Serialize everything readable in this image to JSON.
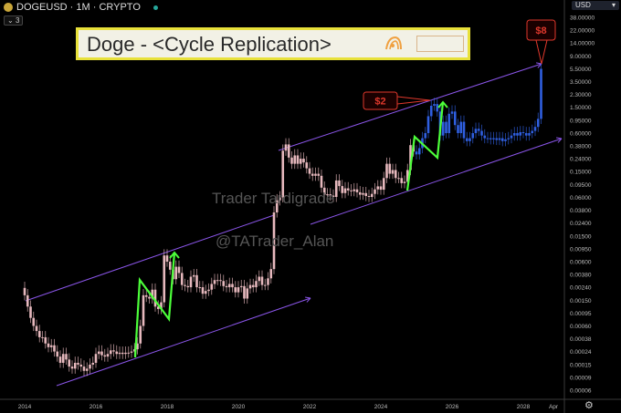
{
  "header": {
    "symbol": "DOGEUSD · 1M · CRYPTO",
    "indicator_count": "3",
    "currency": "USD",
    "currency_caret": "▾",
    "settings_icon": "gear-icon"
  },
  "title_box": {
    "text": "Doge - <Cycle Replication>",
    "logo_text": "Trader Tardigrade @TATrader_Alan"
  },
  "watermarks": [
    "Trader Tardigrade",
    "@TATrader_Alan"
  ],
  "colors": {
    "history_candles": "#e6b8bd",
    "projection_candles": "#2f5fe0",
    "channel": "#8a55e8",
    "n_pattern": "#4cff3a",
    "annotation": "#e0382c",
    "title_border": "#e8e13a"
  },
  "chart_data": {
    "type": "candlestick",
    "scale": "log",
    "grid": false,
    "y_ticks": [
      "38.00000",
      "22.00000",
      "14.00000",
      "9.00000",
      "5.50000",
      "3.50000",
      "2.30000",
      "1.50000",
      "0.95000",
      "0.60000",
      "0.38000",
      "0.24000",
      "0.15000",
      "0.09500",
      "0.06000",
      "0.03800",
      "0.02400",
      "0.01500",
      "0.00950",
      "0.00600",
      "0.00380",
      "0.00240",
      "0.00150",
      "0.00095",
      "0.00060",
      "0.00038",
      "0.00024",
      "0.00015",
      "0.00009",
      "0.00006"
    ],
    "x_ticks": [
      "2014",
      "2016",
      "2018",
      "2020",
      "2022",
      "2024",
      "2026",
      "2028",
      "Apr"
    ],
    "ylim": [
      6e-05,
      38
    ],
    "xlim": [
      "2013-11",
      "2029-08"
    ],
    "history_monthly_close": {
      "2014": [
        0.0018,
        0.0012,
        0.0008,
        0.0006,
        0.0005,
        0.0004,
        0.0004,
        0.00032,
        0.00028,
        0.0003,
        0.00024,
        0.0002
      ],
      "2015": [
        0.00016,
        0.00022,
        0.00018,
        0.00014,
        0.00013,
        0.00016,
        0.00015,
        0.00014,
        0.00012,
        0.00013,
        0.00015,
        0.00016
      ],
      "2016": [
        0.00022,
        0.00024,
        0.00021,
        0.0002,
        0.00022,
        0.00025,
        0.00024,
        0.00022,
        0.00023,
        0.00022,
        0.00023,
        0.00023
      ],
      "2017": [
        0.00024,
        0.00026,
        0.00032,
        0.0006,
        0.0018,
        0.0017,
        0.0016,
        0.0022,
        0.0012,
        0.0011,
        0.0014,
        0.0075
      ],
      "2018": [
        0.006,
        0.0045,
        0.0032,
        0.005,
        0.004,
        0.0026,
        0.0025,
        0.0024,
        0.0035,
        0.0037,
        0.0024,
        0.0024
      ],
      "2019": [
        0.0019,
        0.0021,
        0.0022,
        0.0027,
        0.0031,
        0.0031,
        0.003,
        0.0025,
        0.0024,
        0.0027,
        0.0024,
        0.002
      ],
      "2020": [
        0.0024,
        0.0025,
        0.0016,
        0.0023,
        0.0026,
        0.0024,
        0.003,
        0.0035,
        0.0026,
        0.0026,
        0.0033,
        0.0046
      ],
      "2021": [
        0.035,
        0.054,
        0.06,
        0.32,
        0.4,
        0.25,
        0.2,
        0.27,
        0.2,
        0.24,
        0.21,
        0.17
      ],
      "2022": [
        0.14,
        0.13,
        0.14,
        0.13,
        0.085,
        0.066,
        0.067,
        0.064,
        0.061,
        0.11,
        0.09,
        0.07
      ],
      "2023": [
        0.083,
        0.077,
        0.075,
        0.08,
        0.072,
        0.066,
        0.07,
        0.063,
        0.061,
        0.068,
        0.08,
        0.089
      ],
      "2024": [
        0.079,
        0.12,
        0.2,
        0.14,
        0.16,
        0.12,
        0.12,
        0.1,
        0.105,
        0.16,
        0.39,
        0.31
      ]
    },
    "projection_monthly_close": {
      "2025": [
        0.28,
        0.35,
        0.5,
        0.6,
        1.1,
        1.6,
        1.7,
        1.3,
        0.55,
        0.9,
        0.6,
        1.2
      ],
      "2026": [
        1.3,
        0.8,
        0.6,
        0.9,
        0.5,
        0.45,
        0.5,
        0.6,
        0.7,
        0.65,
        0.55,
        0.5
      ],
      "2027": [
        0.5,
        0.48,
        0.5,
        0.47,
        0.5,
        0.45,
        0.48,
        0.5,
        0.55,
        0.6,
        0.55,
        0.62
      ],
      "2028": [
        0.6,
        0.55,
        0.6,
        0.65,
        0.75,
        1.0,
        6.0
      ]
    },
    "annotations": [
      {
        "label": "$2",
        "date": "2025-07",
        "price": 1.7
      },
      {
        "label": "$8",
        "date": "2028-07",
        "price": 6.0
      }
    ]
  }
}
